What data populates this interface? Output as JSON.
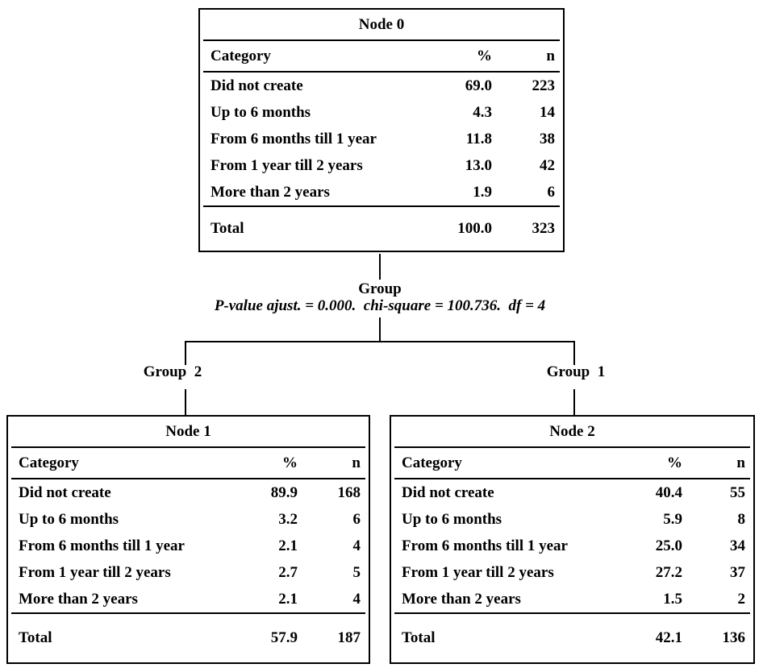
{
  "diagram": {
    "headers": {
      "category": "Category",
      "percent": "%",
      "n": "n"
    },
    "split": {
      "variable": "Group",
      "stats": "P-value ajust. = 0.000.  chi-square = 100.736.  df = 4"
    },
    "branches": [
      {
        "label": "Group  2"
      },
      {
        "label": "Group  1"
      }
    ],
    "nodes": [
      {
        "title": "Node 0",
        "rows": [
          {
            "category": "Did not create",
            "percent": "69.0",
            "n": "223"
          },
          {
            "category": "Up to 6 months",
            "percent": "4.3",
            "n": "14"
          },
          {
            "category": "From 6 months till 1 year",
            "percent": "11.8",
            "n": "38"
          },
          {
            "category": "From 1 year till 2 years",
            "percent": "13.0",
            "n": "42"
          },
          {
            "category": "More than 2 years",
            "percent": "1.9",
            "n": "6"
          }
        ],
        "total": {
          "category": "Total",
          "percent": "100.0",
          "n": "323"
        }
      },
      {
        "title": "Node 1",
        "rows": [
          {
            "category": "Did not create",
            "percent": "89.9",
            "n": "168"
          },
          {
            "category": "Up to 6 months",
            "percent": "3.2",
            "n": "6"
          },
          {
            "category": "From 6 months till 1 year",
            "percent": "2.1",
            "n": "4"
          },
          {
            "category": "From 1 year till 2 years",
            "percent": "2.7",
            "n": "5"
          },
          {
            "category": "More than 2 years",
            "percent": "2.1",
            "n": "4"
          }
        ],
        "total": {
          "category": "Total",
          "percent": "57.9",
          "n": "187"
        }
      },
      {
        "title": "Node 2",
        "rows": [
          {
            "category": "Did not create",
            "percent": "40.4",
            "n": "55"
          },
          {
            "category": "Up to 6 months",
            "percent": "5.9",
            "n": "8"
          },
          {
            "category": "From 6 months till 1 year",
            "percent": "25.0",
            "n": "34"
          },
          {
            "category": "From 1 year till 2 years",
            "percent": "27.2",
            "n": "37"
          },
          {
            "category": "More than 2 years",
            "percent": "1.5",
            "n": "2"
          }
        ],
        "total": {
          "category": "Total",
          "percent": "42.1",
          "n": "136"
        }
      }
    ]
  }
}
